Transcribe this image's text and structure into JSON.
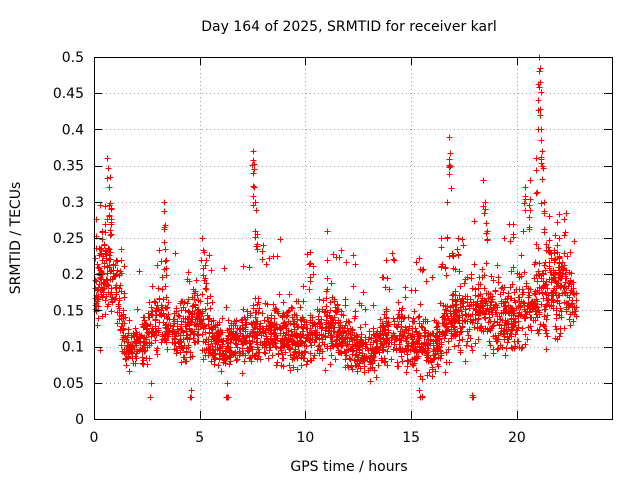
{
  "chart_data": {
    "type": "scatter",
    "title": "Day 164 of 2025, SRMTID for receiver karl",
    "xlabel": "GPS time / hours",
    "ylabel": "SRMTID / TECUs",
    "xlim": [
      0,
      24.5
    ],
    "ylim": [
      0,
      0.5
    ],
    "xticks": [
      0,
      5,
      10,
      15,
      20
    ],
    "xtick_labels": [
      "0",
      "5",
      "10",
      "15",
      "20"
    ],
    "yticks": [
      0,
      0.05,
      0.1,
      0.15,
      0.2,
      0.25,
      0.3,
      0.35,
      0.4,
      0.45,
      0.5
    ],
    "ytick_labels": [
      "0",
      "0.05",
      "0.1",
      "0.15",
      "0.2",
      "0.25",
      "0.3",
      "0.35",
      "0.4",
      "0.45",
      "0.5"
    ],
    "grid": true,
    "marker": "+",
    "point_color": "#ff0000",
    "data_range_hours": [
      0,
      22.8
    ],
    "series": [
      {
        "name": "SRMTID",
        "envelope": [
          [
            0.0,
            0.175
          ],
          [
            0.5,
            0.2
          ],
          [
            0.7,
            0.22
          ],
          [
            1.0,
            0.18
          ],
          [
            1.5,
            0.1
          ],
          [
            2.0,
            0.1
          ],
          [
            3.0,
            0.135
          ],
          [
            4.0,
            0.12
          ],
          [
            5.0,
            0.14
          ],
          [
            6.0,
            0.1
          ],
          [
            7.0,
            0.11
          ],
          [
            8.0,
            0.12
          ],
          [
            9.0,
            0.12
          ],
          [
            10.0,
            0.11
          ],
          [
            11.0,
            0.13
          ],
          [
            12.0,
            0.11
          ],
          [
            13.0,
            0.09
          ],
          [
            14.0,
            0.12
          ],
          [
            15.0,
            0.11
          ],
          [
            16.0,
            0.1
          ],
          [
            17.0,
            0.14
          ],
          [
            18.0,
            0.15
          ],
          [
            19.0,
            0.14
          ],
          [
            20.0,
            0.14
          ],
          [
            21.0,
            0.17
          ],
          [
            22.0,
            0.19
          ],
          [
            22.8,
            0.16
          ]
        ],
        "highlights": [
          [
            0.6,
            0.36
          ],
          [
            0.7,
            0.32
          ],
          [
            0.8,
            0.29
          ],
          [
            0.5,
            0.27
          ],
          [
            0.4,
            0.26
          ],
          [
            1.3,
            0.22
          ],
          [
            3.3,
            0.3
          ],
          [
            3.3,
            0.265
          ],
          [
            3.4,
            0.22
          ],
          [
            5.1,
            0.25
          ],
          [
            5.2,
            0.23
          ],
          [
            5.3,
            0.22
          ],
          [
            7.5,
            0.37
          ],
          [
            7.55,
            0.345
          ],
          [
            7.6,
            0.3
          ],
          [
            7.7,
            0.255
          ],
          [
            10.2,
            0.23
          ],
          [
            11.0,
            0.22
          ],
          [
            13.8,
            0.22
          ],
          [
            16.4,
            0.25
          ],
          [
            16.7,
            0.3
          ],
          [
            16.8,
            0.39
          ],
          [
            16.85,
            0.35
          ],
          [
            17.2,
            0.25
          ],
          [
            18.4,
            0.33
          ],
          [
            18.5,
            0.3
          ],
          [
            18.6,
            0.26
          ],
          [
            19.8,
            0.27
          ],
          [
            20.4,
            0.32
          ],
          [
            20.6,
            0.33
          ],
          [
            20.9,
            0.36
          ],
          [
            21.05,
            0.5
          ],
          [
            21.1,
            0.465
          ],
          [
            21.0,
            0.44
          ],
          [
            21.15,
            0.4
          ],
          [
            21.2,
            0.37
          ],
          [
            21.3,
            0.3
          ],
          [
            21.5,
            0.28
          ],
          [
            22.0,
            0.25
          ],
          [
            22.3,
            0.2
          ],
          [
            15.4,
            0.06
          ],
          [
            15.5,
            0.055
          ],
          [
            17.9,
            0.033
          ],
          [
            4.6,
            0.04
          ],
          [
            6.3,
            0.05
          ],
          [
            2.7,
            0.05
          ]
        ]
      }
    ]
  }
}
